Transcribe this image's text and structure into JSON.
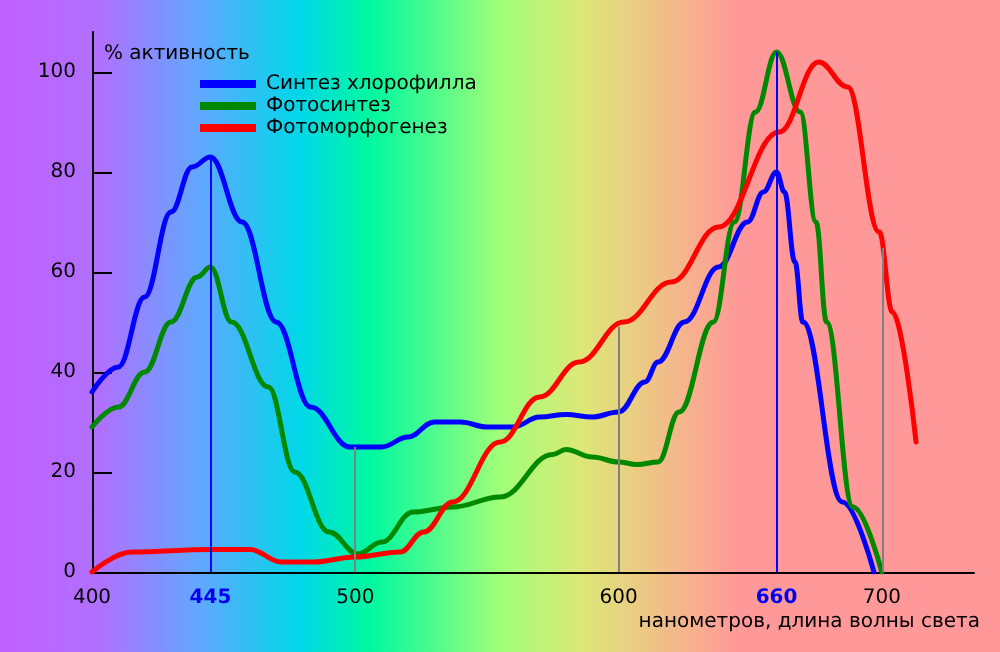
{
  "chart_data": {
    "type": "line",
    "ylabel": "% активность",
    "xlabel": "нанометров, длина волны света",
    "xlim": [
      400,
      735
    ],
    "ylim": [
      0,
      108
    ],
    "xticks": [
      400,
      445,
      500,
      600,
      660,
      700
    ],
    "yticks": [
      0,
      20,
      40,
      60,
      80,
      100
    ],
    "legend": "top left",
    "grid": false,
    "marker": "none",
    "line_style": "solid",
    "series": [
      {
        "name": "Синтез хлорофилла",
        "color": "#0000ff",
        "x": [
          400,
          410,
          420,
          430,
          438,
          445,
          457,
          470,
          483,
          498,
          510,
          520,
          530,
          540,
          550,
          560,
          570,
          580,
          590,
          600,
          610,
          615,
          625,
          638,
          649,
          655,
          660,
          663,
          667,
          670,
          685,
          697
        ],
        "values": [
          36,
          41,
          55,
          72,
          81,
          83,
          70,
          50,
          33,
          25,
          25,
          27,
          30,
          30,
          29,
          29,
          31,
          31.5,
          31,
          32,
          38,
          42,
          50,
          61,
          70,
          76,
          80,
          76,
          62,
          50,
          14,
          0
        ]
      },
      {
        "name": "Фотосинтез",
        "color": "#008800",
        "x": [
          400,
          410,
          420,
          430,
          440,
          445,
          453,
          467,
          477,
          490,
          501,
          510,
          522,
          537,
          555,
          575,
          580,
          590,
          600,
          607,
          615,
          623,
          636,
          644,
          652,
          660,
          669,
          675,
          679,
          689,
          700
        ],
        "values": [
          29,
          33,
          40,
          50,
          59,
          61,
          50,
          37,
          20,
          8,
          3.6,
          6,
          12,
          13,
          15,
          23.5,
          24.5,
          23,
          22,
          21.5,
          22,
          32,
          50,
          70,
          92,
          104,
          92,
          70,
          50,
          13,
          0
        ]
      },
      {
        "name": "Фотоморфогенез",
        "color": "#ff0000",
        "x": [
          400,
          415,
          445,
          460,
          472,
          484,
          500,
          517,
          526,
          537,
          555,
          570,
          585,
          602,
          620,
          638,
          661,
          676,
          687,
          699,
          704,
          713
        ],
        "values": [
          0,
          4,
          4.5,
          4.5,
          2,
          2,
          3,
          4,
          8,
          14,
          26,
          35,
          42,
          50,
          58,
          69,
          88,
          102,
          97,
          68,
          52,
          26
        ]
      }
    ],
    "ref_lines": [
      {
        "axis": "x",
        "value": 445,
        "color": "#0000ff"
      },
      {
        "axis": "x",
        "value": 500,
        "color": "#808080"
      },
      {
        "axis": "x",
        "value": 600,
        "color": "#808080"
      },
      {
        "axis": "x",
        "value": 660,
        "color": "#0000ff"
      },
      {
        "axis": "x",
        "value": 700,
        "color": "#808080"
      }
    ]
  }
}
